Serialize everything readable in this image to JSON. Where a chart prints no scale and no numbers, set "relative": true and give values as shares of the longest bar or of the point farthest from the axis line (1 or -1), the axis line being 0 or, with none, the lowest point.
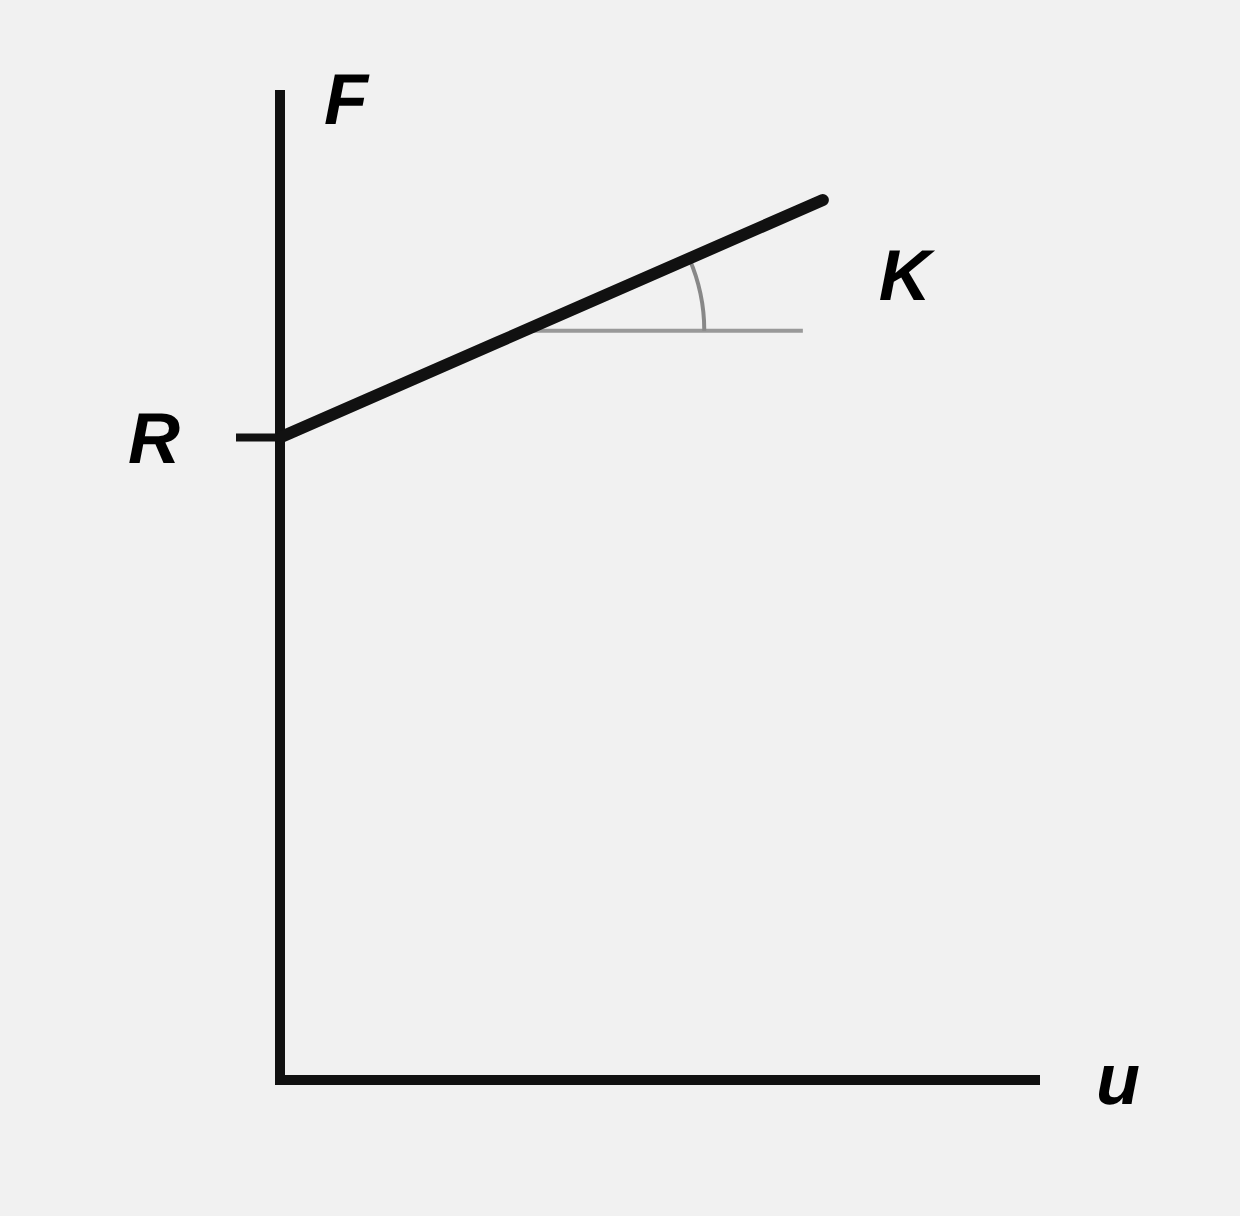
{
  "chart_data": {
    "type": "line",
    "relative": true,
    "xlabel": "u",
    "ylabel": "F",
    "categories": [
      null,
      null,
      null,
      null,
      null,
      null,
      null
    ],
    "series": [
      {
        "color": "#111111",
        "values": [
          0.73,
          0.784,
          0.838,
          0.892,
          0.946,
          1.0,
          null
        ]
      }
    ],
    "annotations": [
      "R",
      "K"
    ],
    "marker": "none",
    "line_style": "solid"
  }
}
